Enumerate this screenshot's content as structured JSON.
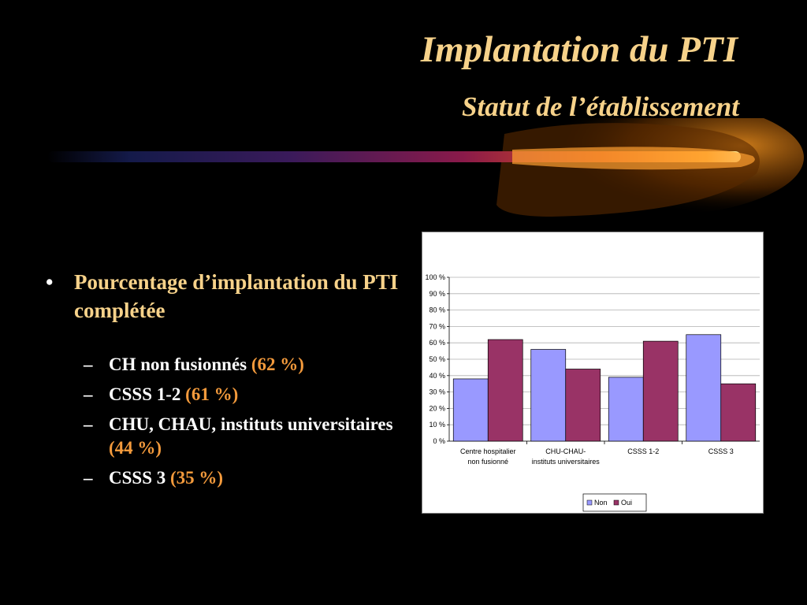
{
  "slide": {
    "title": "Implantation du PTI",
    "subtitle": "Statut de l’établissement"
  },
  "bullets": {
    "main": "Pourcentage d’implantation du PTI complétée",
    "items": [
      {
        "label": "CH non fusionnés",
        "pct": "(62 %)"
      },
      {
        "label": "CSSS 1-2",
        "pct": "(61 %)"
      },
      {
        "label": "CHU, CHAU, instituts universitaires",
        "pct": "(44 %)"
      },
      {
        "label": "CSSS 3",
        "pct": "(35 %)"
      }
    ]
  },
  "chart_data": {
    "type": "bar",
    "categories": [
      [
        "Centre hospitalier",
        "non fusionné"
      ],
      [
        "CHU-CHAU-",
        "instituts universitaires"
      ],
      [
        "CSSS 1-2"
      ],
      [
        "CSSS 3"
      ]
    ],
    "series": [
      {
        "name": "Non",
        "values": [
          38,
          56,
          39,
          65
        ],
        "color": "#9999ff"
      },
      {
        "name": "Oui",
        "values": [
          62,
          44,
          61,
          35
        ],
        "color": "#993366"
      }
    ],
    "ylim": [
      0,
      100
    ],
    "yticks": [
      "0 %",
      "10 %",
      "20 %",
      "30 %",
      "40 %",
      "50 %",
      "60 %",
      "70 %",
      "80 %",
      "90 %",
      "100 %"
    ],
    "grid": true,
    "legend": "bottom-center"
  }
}
